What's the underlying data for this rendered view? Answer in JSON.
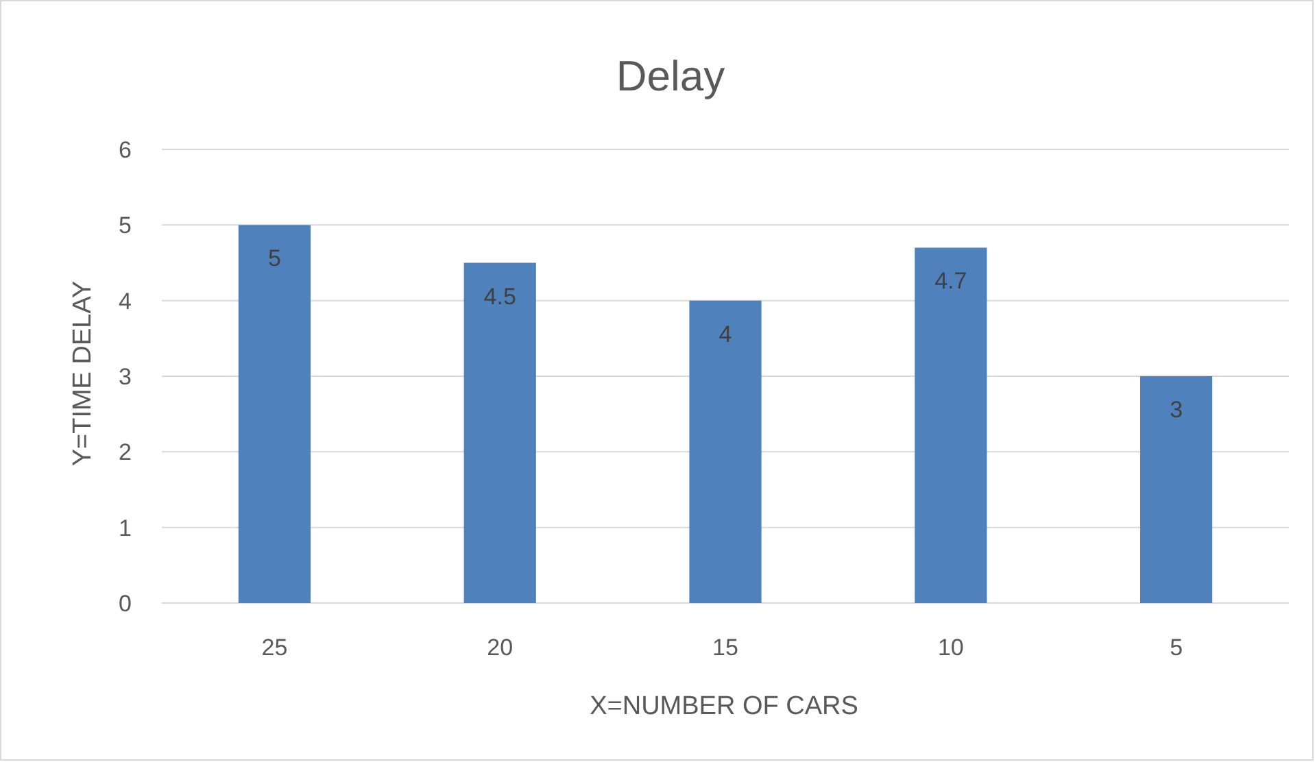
{
  "chart_data": {
    "type": "bar",
    "title": "Delay",
    "xlabel": "X=NUMBER OF CARS",
    "ylabel": "Y=TIME DELAY",
    "categories": [
      "25",
      "20",
      "15",
      "10",
      "5"
    ],
    "values": [
      5,
      4.5,
      4,
      4.7,
      3
    ],
    "color": "#4f81bd",
    "ylim": [
      0,
      6
    ],
    "yticks": [
      0,
      1,
      2,
      3,
      4,
      5,
      6
    ],
    "grid": "y",
    "data_labels": true
  }
}
